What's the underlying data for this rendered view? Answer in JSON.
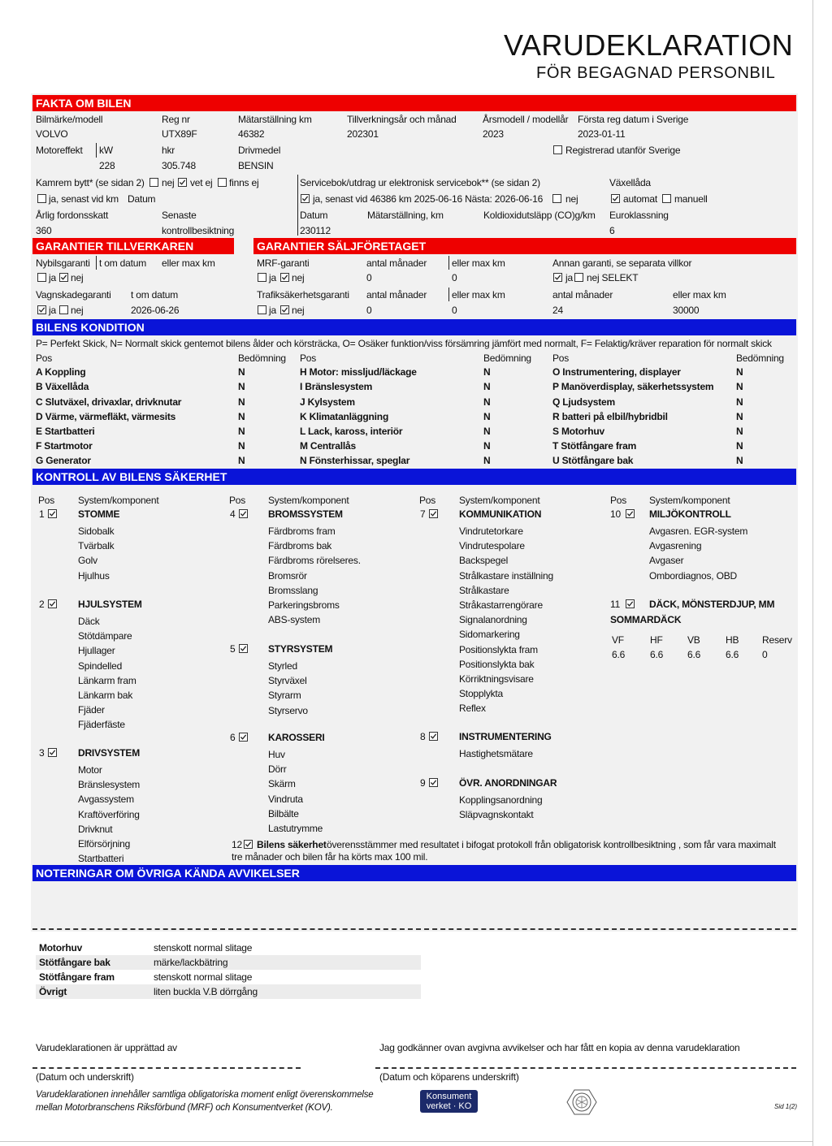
{
  "title": "VARUDEKLARATION",
  "subtitle": "FÖR BEGAGNAD PERSONBIL",
  "fakta": {
    "header": "FAKTA OM BILEN",
    "bilmarke_label": "Bilmärke/modell",
    "bilmarke": "VOLVO",
    "regnr_label": "Reg nr",
    "regnr": "UTX89F",
    "matar_label": "Mätarställning km",
    "matar": "46382",
    "tillv_label": "Tillverkningsår och månad",
    "tillv": "202301",
    "arsmodell_label": "Årsmodell / modellår",
    "arsmodell": "2023",
    "forsta_label": "Första reg datum i Sverige",
    "forsta": "2023-01-11",
    "motoreffekt_label": "Motoreffekt",
    "kw_label": "kW",
    "kw": "228",
    "hkr_label": "hkr",
    "hkr": "305.748",
    "drivmedel_label": "Drivmedel",
    "drivmedel": "BENSIN",
    "reg_utanfor_label": "Registrerad utanför Sverige",
    "reg_utanfor": false,
    "kamrem_label": "Kamrem bytt* (se sidan 2)",
    "kamrem_nej_label": "nej",
    "kamrem_nej": false,
    "kamrem_vetej_label": "vet ej",
    "kamrem_vetej": true,
    "kamrem_finnsej_label": "finns ej",
    "kamrem_finnsej": false,
    "kamrem_ja_label": "ja, senast vid km",
    "kamrem_ja": false,
    "kamrem_datum_label": "Datum",
    "service_label": "Servicebok/utdrag ur elektronisk servicebok** (se sidan 2)",
    "service_ja_label": "ja, senast vid 46386 km  2025-06-16 Nästa: 2026-06-16",
    "service_ja": true,
    "service_nej_label": "nej",
    "service_nej": false,
    "vaxel_label": "Växellåda",
    "automat_label": "automat",
    "automat": true,
    "manuell_label": "manuell",
    "manuell": false,
    "skatt_label": "Årlig fordonsskatt",
    "skatt": "360",
    "senaste_label": "Senaste",
    "senaste_label2": "kontrollbesiktning",
    "datum_label": "Datum",
    "datum": "230112",
    "matar2_label": "Mätarställning, km",
    "co2_label": "Koldioxidutsläpp (CO)g/km",
    "euro_label": "Euroklassning",
    "euro": "6"
  },
  "garanti_tillv": {
    "header": "GARANTIER TILLVERKAREN",
    "nybil_label": "Nybilsgaranti",
    "tom_label": "t om datum",
    "maxkm_label": "eller max km",
    "nybil_ja_label": "ja",
    "nybil_ja": false,
    "nybil_nej_label": "nej",
    "nybil_nej": true,
    "vagn_label": "Vagnskadegaranti",
    "vagn_tom_label": "t om datum",
    "vagn_ja_label": "ja",
    "vagn_ja": true,
    "vagn_nej_label": "nej",
    "vagn_nej": false,
    "vagn_tom": "2026-06-26"
  },
  "garanti_salj": {
    "header": "GARANTIER SÄLJFÖRETAGET",
    "mrf_label": "MRF-garanti",
    "mrf_man_label": "antal månader",
    "mrf_km_label": "eller max km",
    "mrf_ja_label": "ja",
    "mrf_ja": false,
    "mrf_nej_label": "nej",
    "mrf_nej": true,
    "mrf_man": "0",
    "mrf_km": "0",
    "annan_label": "Annan garanti, se separata villkor",
    "annan_ja_label": "ja",
    "annan_ja": true,
    "annan_nej_label": "nej SELEKT",
    "annan_nej": false,
    "trafik_label": "Trafiksäkerhetsgaranti",
    "trafik_man_label": "antal månader",
    "trafik_km_label": "eller max km",
    "trafik_ja_label": "ja",
    "trafik_ja": false,
    "trafik_nej_label": "nej",
    "trafik_nej": true,
    "trafik_man": "0",
    "trafik_km": "0",
    "annan_man_label": "antal månader",
    "annan_man": "24",
    "annan_km_label": "eller max km",
    "annan_km": "30000"
  },
  "kondition": {
    "header": "BILENS KONDITION",
    "legend": "P= Perfekt Skick, N= Normalt skick gentemot bilens ålder och körsträcka, O= Osäker funktion/viss försämring jämfört med normalt, F= Felaktig/kräver reparation för normalt skick",
    "pos_label": "Pos",
    "bedomning_label": "Bedömning",
    "columns": [
      [
        {
          "name": "A Koppling",
          "grade": "N"
        },
        {
          "name": "B Växellåda",
          "grade": "N"
        },
        {
          "name": "C Slutväxel, drivaxlar, drivknutar",
          "grade": "N"
        },
        {
          "name": "D Värme, värmefläkt, värmesits",
          "grade": "N"
        },
        {
          "name": "E Startbatteri",
          "grade": "N"
        },
        {
          "name": "F Startmotor",
          "grade": "N"
        },
        {
          "name": "G Generator",
          "grade": "N"
        }
      ],
      [
        {
          "name": "H Motor: missljud/läckage",
          "grade": "N"
        },
        {
          "name": "I Bränslesystem",
          "grade": "N"
        },
        {
          "name": "J Kylsystem",
          "grade": "N"
        },
        {
          "name": "K Klimatanläggning",
          "grade": "N"
        },
        {
          "name": "L Lack, kaross, interiör",
          "grade": "N"
        },
        {
          "name": "M Centrallås",
          "grade": "N"
        },
        {
          "name": "N Fönsterhissar, speglar",
          "grade": "N"
        }
      ],
      [
        {
          "name": "O Instrumentering, displayer",
          "grade": "N"
        },
        {
          "name": "P Manöverdisplay, säkerhetssystem",
          "grade": "N"
        },
        {
          "name": "Q Ljudsystem",
          "grade": "N"
        },
        {
          "name": "R batteri på elbil/hybridbil",
          "grade": "N"
        },
        {
          "name": "S Motorhuv",
          "grade": "N"
        },
        {
          "name": "T Stötfångare fram",
          "grade": "N"
        },
        {
          "name": "U Stötfångare bak",
          "grade": "N"
        }
      ]
    ]
  },
  "sakerhet": {
    "header": "KONTROLL AV BILENS SÄKERHET",
    "pos_label": "Pos",
    "system_label": "System/komponent",
    "groups": [
      {
        "num": "1",
        "title": "STOMME",
        "checked": true,
        "items": [
          "Sidobalk",
          "Tvärbalk",
          "Golv",
          "Hjulhus"
        ]
      },
      {
        "num": "2",
        "title": "HJULSYSTEM",
        "checked": true,
        "items": [
          "Däck",
          "Stötdämpare",
          "Hjullager",
          "Spindelled",
          "Länkarm fram",
          "Länkarm bak",
          "Fjäder",
          "Fjäderfäste"
        ]
      },
      {
        "num": "3",
        "title": "DRIVSYSTEM",
        "checked": true,
        "items": [
          "Motor",
          "Bränslesystem",
          "Avgassystem",
          "Kraftöverföring",
          "Drivknut",
          "Elförsörjning",
          "Startbatteri"
        ]
      },
      {
        "num": "4",
        "title": "BROMSSYSTEM",
        "checked": true,
        "items": [
          "Färdbroms fram",
          "Färdbroms bak",
          "Färdbroms rörelseres.",
          "Bromsrör",
          "Bromsslang",
          "Parkeringsbroms",
          "ABS-system"
        ]
      },
      {
        "num": "5",
        "title": "STYRSYSTEM",
        "checked": true,
        "items": [
          "Styrled",
          "Styrväxel",
          "Styrarm",
          "Styrservo"
        ]
      },
      {
        "num": "6",
        "title": "KAROSSERI",
        "checked": true,
        "items": [
          "Huv",
          "Dörr",
          "Skärm",
          "Vindruta",
          "Bilbälte",
          "Lastutrymme"
        ]
      },
      {
        "num": "7",
        "title": "KOMMUNIKATION",
        "checked": true,
        "items": [
          "Vindrutetorkare",
          "Vindrutespolare",
          "Backspegel",
          "Strålkastare inställning",
          "Strålkastare",
          "Stråkastarrengörare",
          "Signalanordning",
          "Sidomarkering",
          "Positionslykta fram",
          "Positionslykta bak",
          "Körriktningsvisare",
          "Stopplykta",
          "Reflex"
        ]
      },
      {
        "num": "8",
        "title": "INSTRUMENTERING",
        "checked": true,
        "items": [
          "Hastighetsmätare"
        ]
      },
      {
        "num": "9",
        "title": "ÖVR. ANORDNINGAR",
        "checked": true,
        "items": [
          "Kopplingsanordning",
          "Släpvagnskontakt"
        ]
      },
      {
        "num": "10",
        "title": "MILJÖKONTROLL",
        "checked": true,
        "items": [
          "Avgasren. EGR-system",
          "Avgasrening",
          "Avgaser",
          "Ombordiagnos, OBD"
        ]
      },
      {
        "num": "11",
        "title": "DÄCK, MÖNSTERDJUP, MM",
        "checked": true,
        "items": []
      }
    ],
    "tyre_type": "SOMMARDÄCK",
    "tyres": [
      {
        "pos": "VF",
        "depth": "6.6"
      },
      {
        "pos": "HF",
        "depth": "6.6"
      },
      {
        "pos": "VB",
        "depth": "6.6"
      },
      {
        "pos": "HB",
        "depth": "6.6"
      },
      {
        "pos": "Reserv",
        "depth": "0"
      }
    ],
    "item12_num": "12",
    "item12_checked": true,
    "item12_bold": "Bilens säkerhet",
    "item12_text": " överensstämmer med resultatet i bifogat protokoll från obligatorisk kontrollbesiktning , som får vara maximalt",
    "item12_text2": "tre månader och bilen får ha körts max 100 mil."
  },
  "noteringar": {
    "header": "NOTERINGAR OM ÖVRIGA KÄNDA AVVIKELSER",
    "rows": [
      {
        "label": "Motorhuv",
        "value": "stenskott normal slitage"
      },
      {
        "label": "Stötfångare bak",
        "value": "märke/lackbätring"
      },
      {
        "label": "Stötfångare fram",
        "value": "stenskott normal slitage"
      },
      {
        "label": "Övrigt",
        "value": "liten buckla V.B dörrgång"
      }
    ]
  },
  "signatur": {
    "upprattad": "Varudeklarationen är upprättad av",
    "godkanner": "Jag godkänner ovan avgivna avvikelser och har fått en kopia av denna varudeklaration",
    "datum_underskrift": "(Datum och underskrift)",
    "datum_kopare": "(Datum och köparens underskrift)",
    "footnote1": "Varudeklarationen innehåller samtliga obligatoriska moment enligt överenskommelse",
    "footnote2": "mellan Motorbranschens Riksförbund (MRF) och Konsumentverket (KOV).",
    "logo_ko_line1": "Konsument",
    "logo_ko_line2": "verket · KO",
    "page": "Sid 1(2)"
  }
}
